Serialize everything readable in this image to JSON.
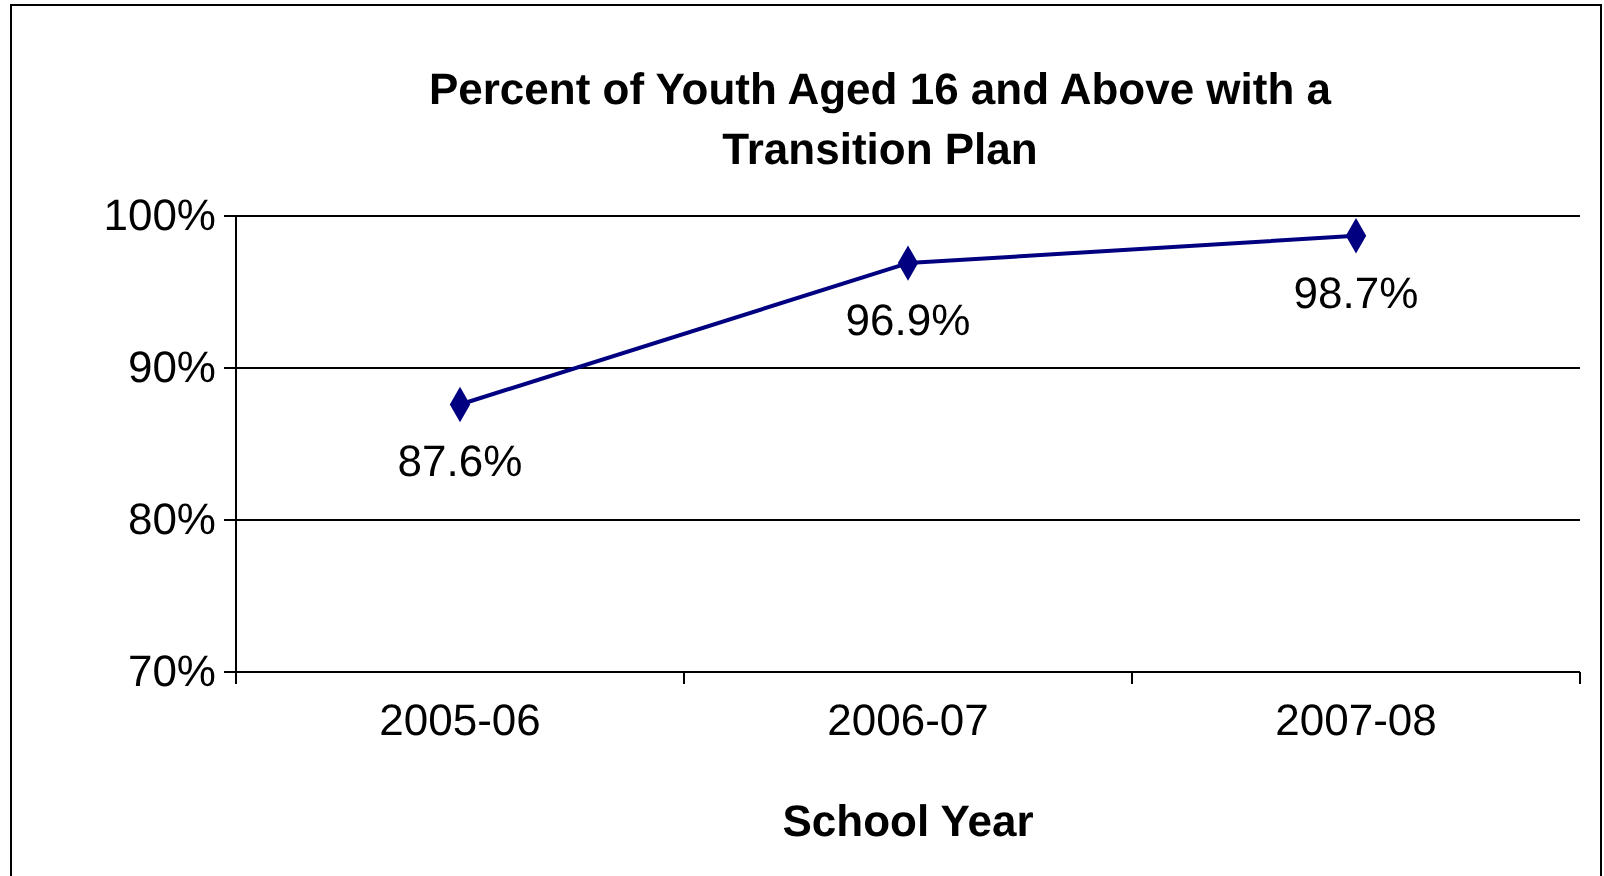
{
  "chart_data": {
    "type": "line",
    "title": "Percent of Youth Aged 16 and Above with a Transition Plan",
    "xlabel": "School Year",
    "categories": [
      "2005-06",
      "2006-07",
      "2007-08"
    ],
    "series": [
      {
        "color": "#000080",
        "values": [
          87.6,
          96.9,
          98.7
        ],
        "value_labels": [
          "87.6%",
          "96.9%",
          "98.7%"
        ]
      }
    ],
    "ylim": [
      70,
      100
    ],
    "yticks": [
      {
        "value": 70,
        "label": "70%"
      },
      {
        "value": 80,
        "label": "80%"
      },
      {
        "value": 90,
        "label": "90%"
      },
      {
        "value": 100,
        "label": "100%"
      }
    ],
    "grid": "y",
    "marker": "diamond",
    "line_style": "solid"
  }
}
